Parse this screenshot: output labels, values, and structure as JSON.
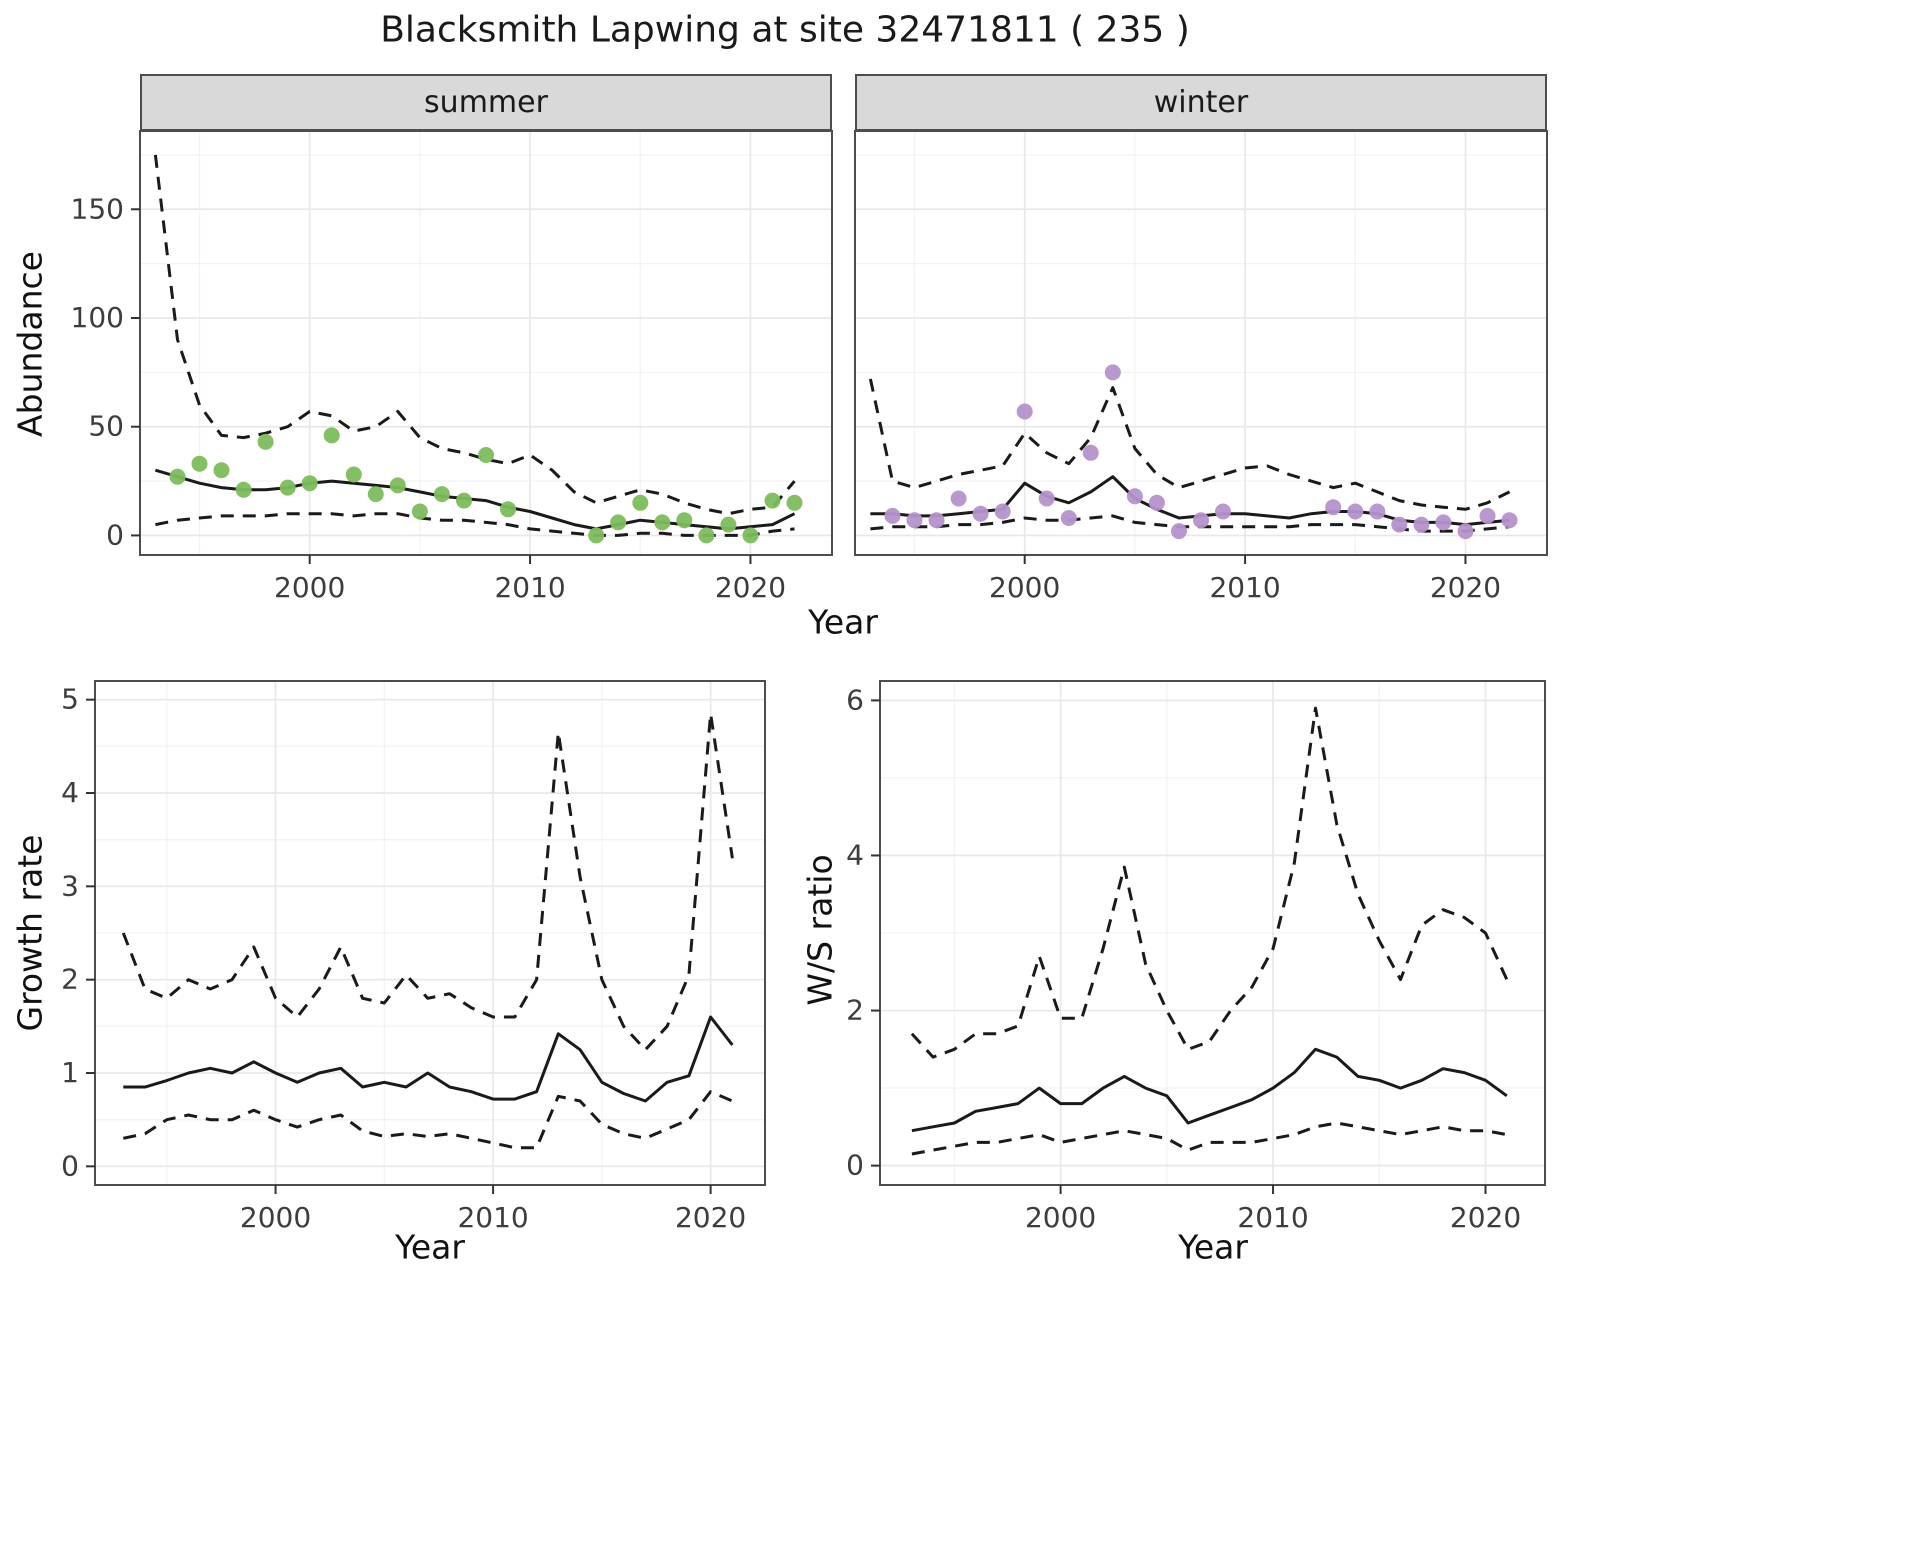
{
  "title": "Blacksmith Lapwing at site 32471811 ( 235 )",
  "colors": {
    "summer_point": "#7cbd5b",
    "winter_point": "#b592cc",
    "fit_line": "#1a1a1a",
    "strip_bg": "#d9d9d9",
    "panel_border": "#4d4d4d",
    "grid_major": "#e8e8e8",
    "grid_minor": "#f3f3f3",
    "tick_label": "#3d3d3d"
  },
  "chart_data": [
    {
      "id": "abundance-summer",
      "type": "line",
      "facet_label": "summer",
      "xlabel": "Year",
      "ylabel": "Abundance",
      "xlim": [
        1992.3,
        2023.7
      ],
      "ylim": [
        -9,
        186
      ],
      "x_ticks": [
        2000,
        2010,
        2020
      ],
      "y_ticks": [
        0,
        50,
        100,
        150
      ],
      "x": [
        1993,
        1994,
        1995,
        1996,
        1997,
        1998,
        1999,
        2000,
        2001,
        2002,
        2003,
        2004,
        2005,
        2006,
        2007,
        2008,
        2009,
        2010,
        2011,
        2012,
        2013,
        2014,
        2015,
        2016,
        2017,
        2018,
        2019,
        2020,
        2021,
        2022
      ],
      "series": [
        {
          "name": "fit",
          "style": "solid",
          "values": [
            30,
            27,
            24,
            22,
            21,
            21,
            22,
            24,
            25,
            24,
            23,
            22,
            20,
            18,
            17,
            16,
            13,
            11,
            8,
            5,
            3,
            5,
            7,
            6,
            5,
            4,
            3,
            4,
            5,
            10
          ]
        },
        {
          "name": "upper-ci",
          "style": "dashed",
          "values": [
            175,
            90,
            60,
            46,
            45,
            47,
            50,
            57,
            55,
            48,
            50,
            57,
            45,
            40,
            38,
            35,
            33,
            37,
            30,
            20,
            15,
            18,
            21,
            19,
            15,
            12,
            10,
            12,
            13,
            25
          ]
        },
        {
          "name": "lower-ci",
          "style": "dashed",
          "values": [
            5,
            7,
            8,
            9,
            9,
            9,
            10,
            10,
            10,
            9,
            10,
            10,
            8,
            7,
            7,
            6,
            5,
            3,
            2,
            1,
            0,
            0,
            1,
            1,
            0,
            0,
            0,
            0,
            2,
            3
          ]
        }
      ],
      "points": {
        "name": "observed-counts",
        "color": "#7cbd5b",
        "x": [
          1994,
          1995,
          1996,
          1997,
          1998,
          1999,
          2000,
          2001,
          2002,
          2003,
          2004,
          2005,
          2006,
          2007,
          2008,
          2009,
          2013,
          2014,
          2015,
          2016,
          2017,
          2018,
          2019,
          2020,
          2021,
          2022
        ],
        "y": [
          27,
          33,
          30,
          21,
          43,
          22,
          24,
          46,
          28,
          19,
          23,
          11,
          19,
          16,
          37,
          12,
          0,
          6,
          15,
          6,
          7,
          0,
          5,
          0,
          16,
          15
        ]
      }
    },
    {
      "id": "abundance-winter",
      "type": "line",
      "facet_label": "winter",
      "xlabel": "Year",
      "ylabel": "Abundance",
      "xlim": [
        1992.3,
        2023.7
      ],
      "ylim": [
        -9,
        186
      ],
      "x_ticks": [
        2000,
        2010,
        2020
      ],
      "y_ticks": [
        0,
        50,
        100,
        150
      ],
      "x": [
        1993,
        1994,
        1995,
        1996,
        1997,
        1998,
        1999,
        2000,
        2001,
        2002,
        2003,
        2004,
        2005,
        2006,
        2007,
        2008,
        2009,
        2010,
        2011,
        2012,
        2013,
        2014,
        2015,
        2016,
        2017,
        2018,
        2019,
        2020,
        2021,
        2022
      ],
      "series": [
        {
          "name": "fit",
          "style": "solid",
          "values": [
            10,
            10,
            9,
            9,
            10,
            11,
            12,
            24,
            18,
            15,
            20,
            27,
            17,
            12,
            8,
            9,
            10,
            10,
            9,
            8,
            10,
            11,
            11,
            10,
            7,
            6,
            6,
            5,
            6,
            7
          ]
        },
        {
          "name": "upper-ci",
          "style": "dashed",
          "values": [
            72,
            25,
            22,
            25,
            28,
            30,
            32,
            47,
            38,
            33,
            45,
            68,
            40,
            28,
            22,
            25,
            28,
            31,
            32,
            28,
            25,
            22,
            24,
            20,
            16,
            14,
            13,
            12,
            15,
            20
          ]
        },
        {
          "name": "lower-ci",
          "style": "dashed",
          "values": [
            3,
            4,
            4,
            4,
            5,
            5,
            6,
            8,
            7,
            7,
            8,
            9,
            6,
            5,
            4,
            4,
            4,
            4,
            4,
            4,
            5,
            5,
            5,
            4,
            3,
            2,
            2,
            2,
            3,
            4
          ]
        }
      ],
      "points": {
        "name": "observed-counts",
        "color": "#b592cc",
        "x": [
          1994,
          1995,
          1996,
          1997,
          1998,
          1999,
          2000,
          2001,
          2002,
          2003,
          2004,
          2005,
          2006,
          2007,
          2008,
          2009,
          2014,
          2015,
          2016,
          2017,
          2018,
          2019,
          2020,
          2021,
          2022
        ],
        "y": [
          9,
          7,
          7,
          17,
          10,
          11,
          57,
          17,
          8,
          38,
          75,
          18,
          15,
          2,
          7,
          11,
          13,
          11,
          11,
          5,
          5,
          6,
          2,
          9,
          7
        ]
      }
    },
    {
      "id": "growth-rate",
      "type": "line",
      "facet_label": "",
      "xlabel": "Year",
      "ylabel": "Growth rate",
      "xlim": [
        1991.7,
        2022.5
      ],
      "ylim": [
        -0.2,
        5.2
      ],
      "x_ticks": [
        2000,
        2010,
        2020
      ],
      "y_ticks": [
        0,
        1,
        2,
        3,
        4,
        5
      ],
      "x": [
        1993,
        1994,
        1995,
        1996,
        1997,
        1998,
        1999,
        2000,
        2001,
        2002,
        2003,
        2004,
        2005,
        2006,
        2007,
        2008,
        2009,
        2010,
        2011,
        2012,
        2013,
        2014,
        2015,
        2016,
        2017,
        2018,
        2019,
        2020,
        2021
      ],
      "series": [
        {
          "name": "fit",
          "style": "solid",
          "values": [
            0.85,
            0.85,
            0.92,
            1.0,
            1.05,
            1.0,
            1.12,
            1.0,
            0.9,
            1.0,
            1.05,
            0.85,
            0.9,
            0.85,
            1.0,
            0.85,
            0.8,
            0.72,
            0.72,
            0.8,
            1.42,
            1.25,
            0.9,
            0.78,
            0.7,
            0.9,
            0.97,
            1.6,
            1.3
          ]
        },
        {
          "name": "upper-ci",
          "style": "dashed",
          "values": [
            2.5,
            1.9,
            1.8,
            2.0,
            1.9,
            2.0,
            2.35,
            1.8,
            1.6,
            1.9,
            2.35,
            1.8,
            1.75,
            2.05,
            1.8,
            1.85,
            1.7,
            1.6,
            1.6,
            2.0,
            4.65,
            3.1,
            2.0,
            1.5,
            1.25,
            1.5,
            2.05,
            4.85,
            3.3
          ]
        },
        {
          "name": "lower-ci",
          "style": "dashed",
          "values": [
            0.3,
            0.35,
            0.5,
            0.55,
            0.5,
            0.5,
            0.6,
            0.5,
            0.42,
            0.5,
            0.55,
            0.38,
            0.32,
            0.35,
            0.32,
            0.35,
            0.3,
            0.25,
            0.2,
            0.2,
            0.75,
            0.7,
            0.45,
            0.35,
            0.3,
            0.4,
            0.5,
            0.8,
            0.7
          ]
        }
      ]
    },
    {
      "id": "ws-ratio",
      "type": "line",
      "facet_label": "",
      "xlabel": "Year",
      "ylabel": "W/S ratio",
      "xlim": [
        1991.5,
        2022.8
      ],
      "ylim": [
        -0.25,
        6.25
      ],
      "x_ticks": [
        2000,
        2010,
        2020
      ],
      "y_ticks": [
        0,
        2,
        4,
        6
      ],
      "x": [
        1993,
        1994,
        1995,
        1996,
        1997,
        1998,
        1999,
        2000,
        2001,
        2002,
        2003,
        2004,
        2005,
        2006,
        2007,
        2008,
        2009,
        2010,
        2011,
        2012,
        2013,
        2014,
        2015,
        2016,
        2017,
        2018,
        2019,
        2020,
        2021
      ],
      "series": [
        {
          "name": "fit",
          "style": "solid",
          "values": [
            0.45,
            0.5,
            0.55,
            0.7,
            0.75,
            0.8,
            1.0,
            0.8,
            0.8,
            1.0,
            1.15,
            1.0,
            0.9,
            0.55,
            0.65,
            0.75,
            0.85,
            1.0,
            1.2,
            1.5,
            1.4,
            1.15,
            1.1,
            1.0,
            1.1,
            1.25,
            1.2,
            1.1,
            0.9
          ]
        },
        {
          "name": "upper-ci",
          "style": "dashed",
          "values": [
            1.7,
            1.4,
            1.5,
            1.7,
            1.7,
            1.8,
            2.7,
            1.9,
            1.9,
            2.8,
            3.85,
            2.6,
            2.0,
            1.5,
            1.6,
            2.0,
            2.3,
            2.8,
            3.9,
            5.9,
            4.4,
            3.5,
            2.9,
            2.4,
            3.1,
            3.3,
            3.2,
            3.0,
            2.4
          ]
        },
        {
          "name": "lower-ci",
          "style": "dashed",
          "values": [
            0.15,
            0.2,
            0.25,
            0.3,
            0.3,
            0.35,
            0.4,
            0.3,
            0.35,
            0.4,
            0.45,
            0.4,
            0.35,
            0.2,
            0.3,
            0.3,
            0.3,
            0.35,
            0.4,
            0.5,
            0.55,
            0.5,
            0.45,
            0.4,
            0.45,
            0.5,
            0.45,
            0.45,
            0.4
          ]
        }
      ]
    }
  ]
}
